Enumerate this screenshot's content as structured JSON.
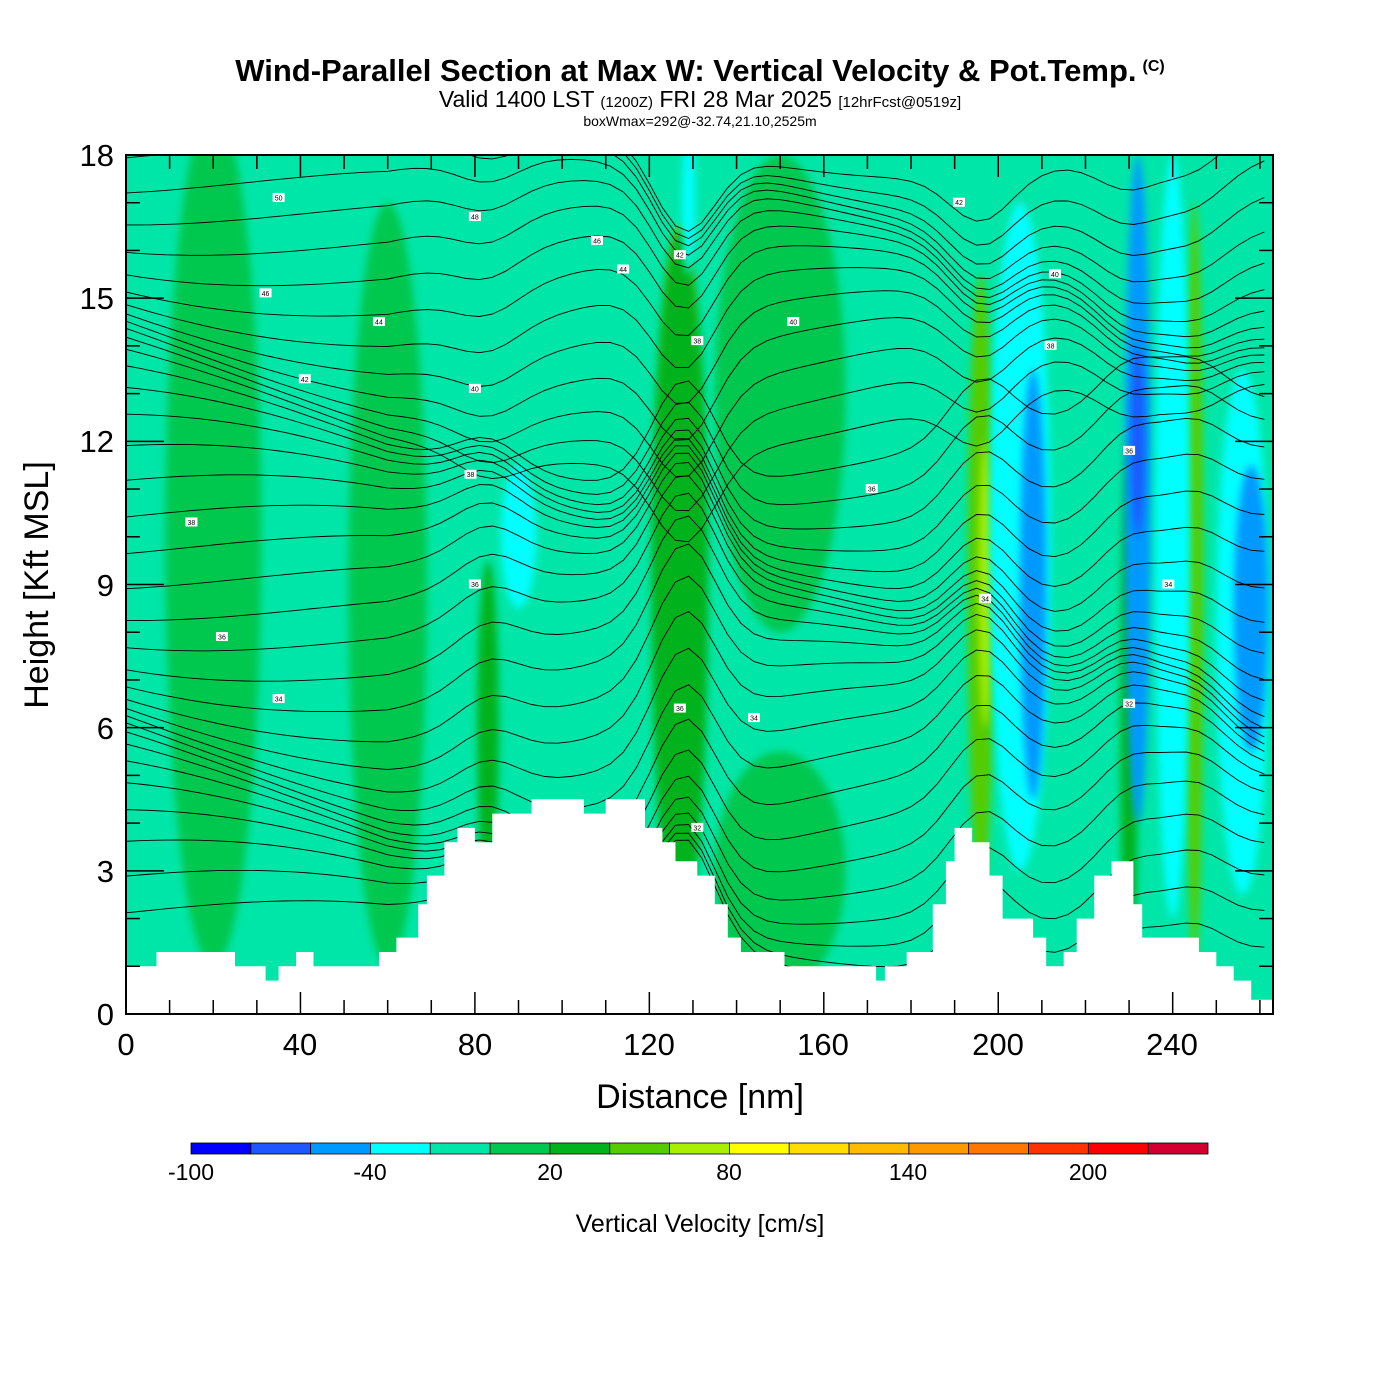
{
  "header": {
    "title": "Wind-Parallel Section at Max W: Vertical Velocity & Pot.Temp.",
    "copyright": "(C)",
    "valid_prefix": "Valid 1400 LST",
    "valid_utc": "(1200Z)",
    "valid_date": "FRI 28 Mar 2025",
    "forecast": "[12hrFcst@0519z]",
    "boxwmax": "boxWmax=292@-32.74,21.10,2525m"
  },
  "chart_data": {
    "type": "heatmap",
    "title": "Wind-Parallel Section at Max W: Vertical Velocity & Pot.Temp.",
    "xlabel": "Distance [nm]",
    "ylabel": "Height [Kft MSL]",
    "xlim": [
      0,
      263
    ],
    "ylim": [
      0,
      18
    ],
    "x_ticks": [
      "0",
      "40",
      "80",
      "120",
      "160",
      "200",
      "240"
    ],
    "y_ticks": [
      "0",
      "3",
      "6",
      "9",
      "12",
      "15",
      "18"
    ],
    "colorbar": {
      "title": "Vertical Velocity [cm/s]",
      "labels": [
        "-100",
        "-40",
        "20",
        "80",
        "140",
        "200"
      ],
      "levels": [
        -100,
        -80,
        -60,
        -40,
        -20,
        0,
        20,
        40,
        60,
        80,
        100,
        120,
        140,
        160,
        180,
        200,
        220,
        240
      ],
      "colors": [
        "#0000ff",
        "#1f56ff",
        "#0099ff",
        "#00ffff",
        "#00e6a8",
        "#00c850",
        "#00b21c",
        "#55cc00",
        "#aaee00",
        "#ffff00",
        "#ffdd00",
        "#ffbb00",
        "#ff9900",
        "#ff7700",
        "#ff3300",
        "#ff0000",
        "#d10030"
      ]
    },
    "background_color": "#00e6a8",
    "updrafts": [
      {
        "x": 128,
        "y": 9.5,
        "w": 4,
        "h": 9,
        "color": "#ff0000"
      },
      {
        "x": 127,
        "y": 11,
        "w": 8,
        "h": 11,
        "color": "#ffdd00"
      },
      {
        "x": 127,
        "y": 9,
        "w": 13,
        "h": 15,
        "color": "#00b21c"
      },
      {
        "x": 196,
        "y": 9,
        "w": 6,
        "h": 13,
        "color": "#55cc00"
      },
      {
        "x": 197,
        "y": 9,
        "w": 3,
        "h": 6,
        "color": "#aaee00"
      },
      {
        "x": 83,
        "y": 6,
        "w": 5,
        "h": 7,
        "color": "#00b21c"
      },
      {
        "x": 230,
        "y": 6,
        "w": 4,
        "h": 12,
        "color": "#00b21c"
      },
      {
        "x": 245,
        "y": 9,
        "w": 4,
        "h": 16,
        "color": "#55cc00"
      },
      {
        "x": 20,
        "y": 10,
        "w": 22,
        "h": 18,
        "color": "#00c850"
      },
      {
        "x": 60,
        "y": 9,
        "w": 18,
        "h": 16,
        "color": "#00c850"
      },
      {
        "x": 150,
        "y": 13,
        "w": 30,
        "h": 10,
        "color": "#00c850"
      },
      {
        "x": 150,
        "y": 3,
        "w": 30,
        "h": 5,
        "color": "#00c850"
      }
    ],
    "downdrafts": [
      {
        "x": 205,
        "y": 10,
        "w": 14,
        "h": 14,
        "color": "#00ffff"
      },
      {
        "x": 208,
        "y": 9,
        "w": 6,
        "h": 9,
        "color": "#0099ff"
      },
      {
        "x": 232,
        "y": 11,
        "w": 6,
        "h": 14,
        "color": "#0099ff"
      },
      {
        "x": 232,
        "y": 12,
        "w": 3,
        "h": 4,
        "color": "#1f56ff"
      },
      {
        "x": 240,
        "y": 10,
        "w": 8,
        "h": 16,
        "color": "#00ffff"
      },
      {
        "x": 256,
        "y": 8,
        "w": 12,
        "h": 11,
        "color": "#00ffff"
      },
      {
        "x": 258,
        "y": 8.5,
        "w": 8,
        "h": 6,
        "color": "#0099ff"
      },
      {
        "x": 90,
        "y": 10,
        "w": 8,
        "h": 3,
        "color": "#00ffff"
      },
      {
        "x": 129,
        "y": 17,
        "w": 3,
        "h": 3,
        "color": "#00ffff"
      }
    ],
    "terrain": [
      [
        0,
        1
      ],
      [
        7,
        1
      ],
      [
        7,
        1.3
      ],
      [
        25,
        1.3
      ],
      [
        25,
        1
      ],
      [
        32,
        1
      ],
      [
        32,
        0.7
      ],
      [
        35,
        0.7
      ],
      [
        35,
        1
      ],
      [
        39,
        1
      ],
      [
        39,
        1.3
      ],
      [
        43,
        1.3
      ],
      [
        43,
        1
      ],
      [
        58,
        1
      ],
      [
        58,
        1.3
      ],
      [
        62,
        1.3
      ],
      [
        62,
        1.6
      ],
      [
        67,
        1.6
      ],
      [
        67,
        2.3
      ],
      [
        69,
        2.3
      ],
      [
        69,
        2.9
      ],
      [
        73,
        2.9
      ],
      [
        73,
        3.6
      ],
      [
        76,
        3.6
      ],
      [
        76,
        3.9
      ],
      [
        80,
        3.9
      ],
      [
        80,
        3.6
      ],
      [
        84,
        3.6
      ],
      [
        84,
        4.2
      ],
      [
        93,
        4.2
      ],
      [
        93,
        4.5
      ],
      [
        105,
        4.5
      ],
      [
        105,
        4.2
      ],
      [
        110,
        4.2
      ],
      [
        110,
        4.5
      ],
      [
        119,
        4.5
      ],
      [
        119,
        3.9
      ],
      [
        123,
        3.9
      ],
      [
        123,
        3.6
      ],
      [
        126,
        3.6
      ],
      [
        126,
        3.2
      ],
      [
        131,
        3.2
      ],
      [
        131,
        2.9
      ],
      [
        135,
        2.9
      ],
      [
        135,
        2.3
      ],
      [
        138,
        2.3
      ],
      [
        138,
        1.6
      ],
      [
        141,
        1.6
      ],
      [
        141,
        1.3
      ],
      [
        151,
        1.3
      ],
      [
        151,
        1
      ],
      [
        172,
        1
      ],
      [
        172,
        0.7
      ],
      [
        174,
        0.7
      ],
      [
        174,
        1
      ],
      [
        179,
        1
      ],
      [
        179,
        1.3
      ],
      [
        185,
        1.3
      ],
      [
        185,
        2.3
      ],
      [
        188,
        2.3
      ],
      [
        188,
        3.2
      ],
      [
        190,
        3.2
      ],
      [
        190,
        3.9
      ],
      [
        194,
        3.9
      ],
      [
        194,
        3.6
      ],
      [
        198,
        3.6
      ],
      [
        198,
        2.9
      ],
      [
        201,
        2.9
      ],
      [
        201,
        2
      ],
      [
        208,
        2
      ],
      [
        208,
        1.6
      ],
      [
        211,
        1.6
      ],
      [
        211,
        1
      ],
      [
        215,
        1
      ],
      [
        215,
        1.3
      ],
      [
        218,
        1.3
      ],
      [
        218,
        2
      ],
      [
        222,
        2
      ],
      [
        222,
        2.9
      ],
      [
        226,
        2.9
      ],
      [
        226,
        3.2
      ],
      [
        231,
        3.2
      ],
      [
        231,
        2.3
      ],
      [
        233,
        2.3
      ],
      [
        233,
        1.6
      ],
      [
        246,
        1.6
      ],
      [
        246,
        1.3
      ],
      [
        250,
        1.3
      ],
      [
        250,
        1
      ],
      [
        254,
        1
      ],
      [
        254,
        0.7
      ],
      [
        258,
        0.7
      ],
      [
        258,
        0.3
      ],
      [
        263,
        0.3
      ],
      [
        263,
        0
      ]
    ],
    "theta_contours": {
      "label_levels": [
        "50",
        "48",
        "46",
        "44",
        "42",
        "40",
        "38",
        "36",
        "34",
        "32"
      ],
      "labels": [
        {
          "x": 35,
          "y": 17.1,
          "text": "50"
        },
        {
          "x": 80,
          "y": 16.7,
          "text": "48"
        },
        {
          "x": 108,
          "y": 16.2,
          "text": "46"
        },
        {
          "x": 114,
          "y": 15.6,
          "text": "44"
        },
        {
          "x": 32,
          "y": 15.1,
          "text": "46"
        },
        {
          "x": 58,
          "y": 14.5,
          "text": "44"
        },
        {
          "x": 127,
          "y": 15.9,
          "text": "42"
        },
        {
          "x": 153,
          "y": 14.5,
          "text": "40"
        },
        {
          "x": 131,
          "y": 14.1,
          "text": "38"
        },
        {
          "x": 41,
          "y": 13.3,
          "text": "42"
        },
        {
          "x": 80,
          "y": 13.1,
          "text": "40"
        },
        {
          "x": 79,
          "y": 11.3,
          "text": "38"
        },
        {
          "x": 15,
          "y": 10.3,
          "text": "38"
        },
        {
          "x": 171,
          "y": 11,
          "text": "36"
        },
        {
          "x": 80,
          "y": 9,
          "text": "36"
        },
        {
          "x": 22,
          "y": 7.9,
          "text": "36"
        },
        {
          "x": 35,
          "y": 6.6,
          "text": "34"
        },
        {
          "x": 127,
          "y": 6.4,
          "text": "36"
        },
        {
          "x": 144,
          "y": 6.2,
          "text": "34"
        },
        {
          "x": 131,
          "y": 3.9,
          "text": "32"
        },
        {
          "x": 191,
          "y": 17,
          "text": "42"
        },
        {
          "x": 213,
          "y": 15.5,
          "text": "40"
        },
        {
          "x": 212,
          "y": 14,
          "text": "38"
        },
        {
          "x": 230,
          "y": 11.8,
          "text": "36"
        },
        {
          "x": 239,
          "y": 9,
          "text": "34"
        },
        {
          "x": 197,
          "y": 8.7,
          "text": "34"
        },
        {
          "x": 230,
          "y": 6.5,
          "text": "32"
        }
      ]
    }
  }
}
